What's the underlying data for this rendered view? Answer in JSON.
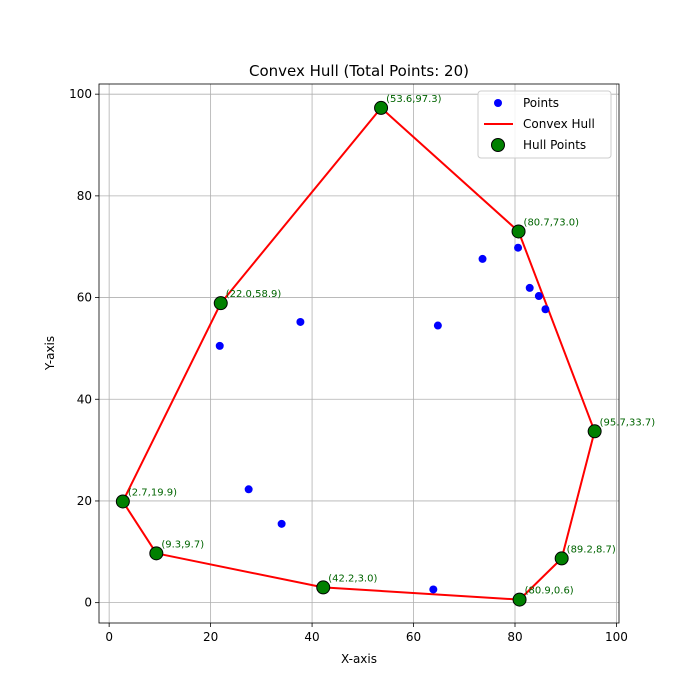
{
  "chart_data": {
    "type": "scatter",
    "title": "Convex Hull (Total Points: 20)",
    "xlabel": "X-axis",
    "ylabel": "Y-axis",
    "xlim": [
      -2,
      100.5
    ],
    "ylim": [
      -4,
      102
    ],
    "xticks": [
      0,
      20,
      40,
      60,
      80,
      100
    ],
    "yticks": [
      0,
      20,
      40,
      60,
      80,
      100
    ],
    "grid": true,
    "legend_position": "top-right",
    "series": [
      {
        "name": "Points",
        "kind": "scatter",
        "color": "#0000ff",
        "points": [
          [
            21.8,
            50.5
          ],
          [
            37.7,
            55.2
          ],
          [
            27.5,
            22.3
          ],
          [
            34.0,
            15.5
          ],
          [
            64.8,
            54.5
          ],
          [
            73.6,
            67.6
          ],
          [
            80.6,
            69.8
          ],
          [
            82.9,
            61.9
          ],
          [
            84.7,
            60.3
          ],
          [
            86.0,
            57.7
          ],
          [
            63.9,
            2.6
          ]
        ]
      },
      {
        "name": "Convex Hull",
        "kind": "line",
        "color": "#ff0000",
        "points": [
          [
            53.6,
            97.3
          ],
          [
            80.7,
            73.0
          ],
          [
            95.7,
            33.7
          ],
          [
            89.2,
            8.7
          ],
          [
            80.9,
            0.6
          ],
          [
            42.2,
            3.0
          ],
          [
            9.3,
            9.7
          ],
          [
            2.7,
            19.9
          ],
          [
            22.0,
            58.9
          ],
          [
            53.6,
            97.3
          ]
        ]
      },
      {
        "name": "Hull Points",
        "kind": "scatter",
        "color": "#008000",
        "points": [
          [
            53.6,
            97.3
          ],
          [
            80.7,
            73.0
          ],
          [
            95.7,
            33.7
          ],
          [
            89.2,
            8.7
          ],
          [
            80.9,
            0.6
          ],
          [
            42.2,
            3.0
          ],
          [
            9.3,
            9.7
          ],
          [
            2.7,
            19.9
          ],
          [
            22.0,
            58.9
          ]
        ]
      }
    ],
    "annotations": [
      {
        "text": "(53.6,97.3)",
        "x": 53.6,
        "y": 97.3
      },
      {
        "text": "(80.7,73.0)",
        "x": 80.7,
        "y": 73.0
      },
      {
        "text": "(95.7,33.7)",
        "x": 95.7,
        "y": 33.7
      },
      {
        "text": "(89.2,8.7)",
        "x": 89.2,
        "y": 8.7
      },
      {
        "text": "(80.9,0.6)",
        "x": 80.9,
        "y": 0.6
      },
      {
        "text": "(42.2,3.0)",
        "x": 42.2,
        "y": 3.0
      },
      {
        "text": "(9.3,9.7)",
        "x": 9.3,
        "y": 9.7
      },
      {
        "text": "(2.7,19.9)",
        "x": 2.7,
        "y": 19.9
      },
      {
        "text": "(22.0,58.9)",
        "x": 22.0,
        "y": 58.9
      }
    ]
  }
}
